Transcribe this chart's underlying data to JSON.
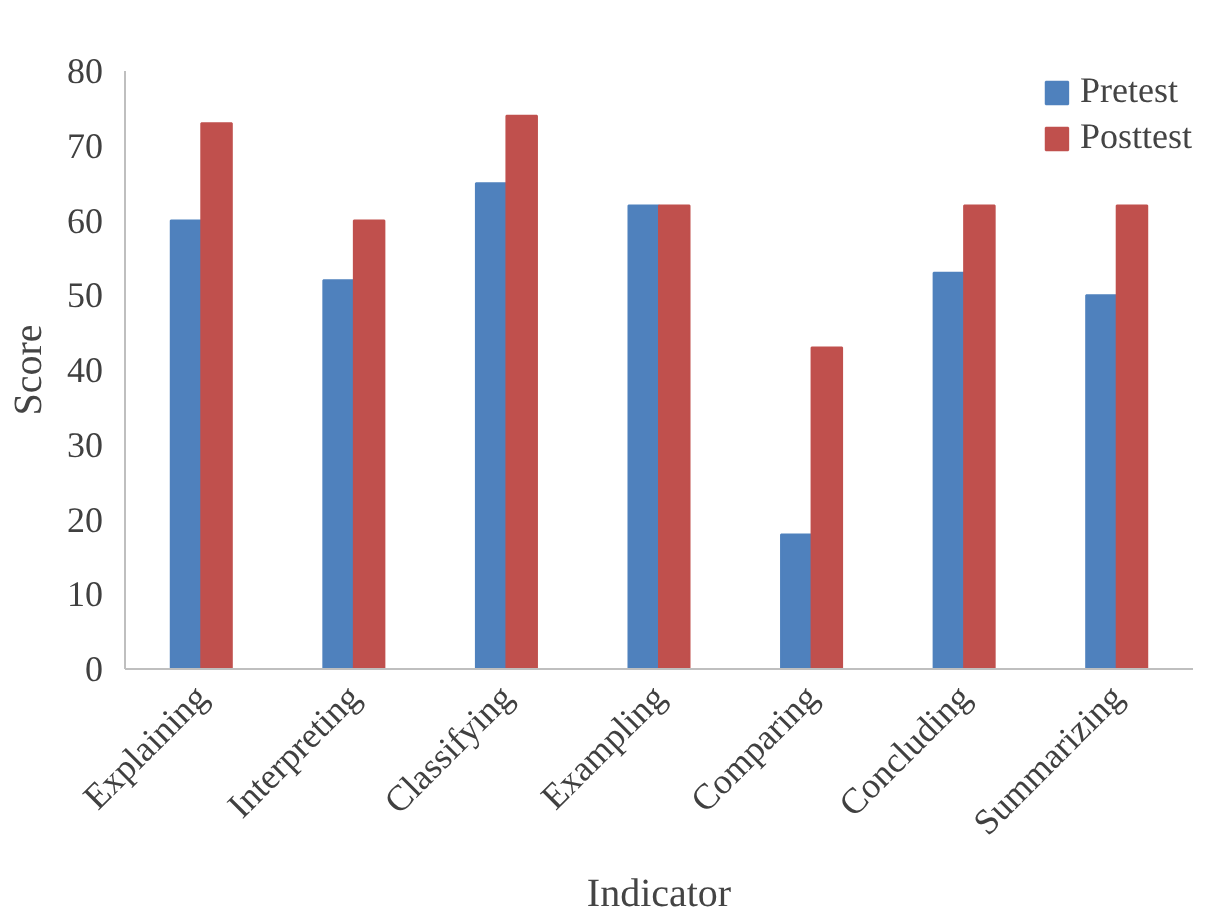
{
  "chart_data": {
    "type": "bar",
    "xlabel": "Indicator",
    "ylabel": "Score",
    "categories": [
      "Explaining",
      "Interpreting",
      "Classifying",
      "Exampling",
      "Comparing",
      "Concluding",
      "Summarizing"
    ],
    "series": [
      {
        "name": "Pretest",
        "color": "#4f81bd",
        "values": [
          60,
          52,
          65,
          62,
          18,
          53,
          50
        ]
      },
      {
        "name": "Posttest",
        "color": "#c0504d",
        "values": [
          73,
          60,
          74,
          62,
          43,
          62,
          62
        ]
      }
    ],
    "ylim": [
      0,
      80
    ],
    "yticks": [
      0,
      10,
      20,
      30,
      40,
      50,
      60,
      70,
      80
    ],
    "grid": false,
    "legend": "top right"
  }
}
